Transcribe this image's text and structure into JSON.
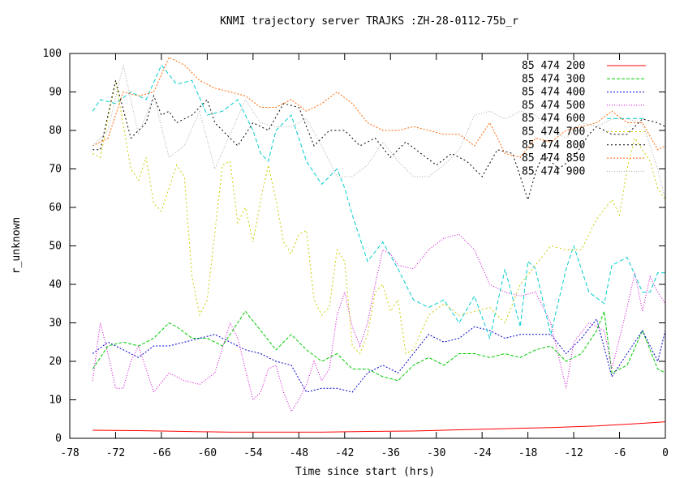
{
  "chart_data": {
    "type": "line",
    "title": "KNMI trajectory server TRAJKS :ZH-28-0112-75b_r",
    "xlabel": "Time since start (hrs)",
    "ylabel": "r_unknown",
    "xlim": [
      -78,
      0
    ],
    "ylim": [
      0,
      100
    ],
    "xticks": [
      "-78",
      "-72",
      "-66",
      "-60",
      "-54",
      "-48",
      "-42",
      "-36",
      "-30",
      "-24",
      "-18",
      "-12",
      "-6",
      "0"
    ],
    "yticks": [
      "0",
      "10",
      "20",
      "30",
      "40",
      "50",
      "60",
      "70",
      "80",
      "90",
      "100"
    ],
    "grid": false,
    "legend_position": "top-right",
    "series": [
      {
        "name": "85 474 200",
        "color": "#ff0000",
        "dash": "",
        "x": [
          -75,
          -69,
          -63,
          -57,
          -51,
          -45,
          -39,
          -33,
          -27,
          -21,
          -15,
          -9,
          -3,
          0
        ],
        "y": [
          2.1,
          2.0,
          1.8,
          1.6,
          1.6,
          1.6,
          1.8,
          1.9,
          2.2,
          2.5,
          2.8,
          3.2,
          3.9,
          4.3
        ]
      },
      {
        "name": "85 474 300",
        "color": "#00cc00",
        "dash": "4,2",
        "x": [
          -75,
          -73,
          -71,
          -69,
          -67,
          -65,
          -64,
          -62,
          -60,
          -58,
          -56,
          -55,
          -53,
          -51,
          -49,
          -47,
          -45,
          -43,
          -41,
          -39,
          -37,
          -35,
          -33,
          -31,
          -29,
          -27,
          -25,
          -23,
          -21,
          -19,
          -17,
          -15,
          -13,
          -11,
          -9,
          -8,
          -7,
          -5,
          -3,
          -1,
          0
        ],
        "y": [
          18,
          24,
          25,
          24,
          26,
          30,
          29,
          26,
          26,
          24,
          30,
          33,
          28,
          23,
          27,
          23,
          20,
          22,
          18,
          18,
          16,
          15,
          19,
          21,
          19,
          22,
          22,
          21,
          22,
          21,
          23,
          24,
          20,
          22,
          28,
          33,
          17,
          19,
          28,
          18,
          17
        ]
      },
      {
        "name": "85 474 400",
        "color": "#0000cc",
        "dash": "2,2",
        "x": [
          -75,
          -73,
          -71,
          -69,
          -67,
          -65,
          -63,
          -61,
          -59,
          -57,
          -55,
          -53,
          -51,
          -49,
          -47,
          -45,
          -43,
          -41,
          -39,
          -37,
          -35,
          -33,
          -31,
          -29,
          -27,
          -25,
          -23,
          -21,
          -19,
          -17,
          -15,
          -13,
          -11,
          -9,
          -7,
          -5,
          -3,
          -1,
          0
        ],
        "y": [
          22,
          25,
          23,
          21,
          24,
          24,
          25,
          26,
          27,
          25,
          23,
          22,
          20,
          19,
          12,
          13,
          13,
          12,
          17,
          19,
          17,
          22,
          27,
          25,
          26,
          29,
          28,
          26,
          27,
          27,
          27,
          22,
          26,
          31,
          16,
          22,
          28,
          20,
          28
        ]
      },
      {
        "name": "85 474 500",
        "color": "#cc00cc",
        "dash": "1,2",
        "x": [
          -75,
          -74,
          -73,
          -72,
          -71,
          -70,
          -69,
          -67,
          -65,
          -63,
          -61,
          -59,
          -57,
          -56,
          -55,
          -54,
          -53,
          -52,
          -51,
          -50,
          -49,
          -48,
          -47,
          -46,
          -45,
          -44,
          -43,
          -42,
          -41,
          -40,
          -39,
          -38,
          -37,
          -36,
          -35,
          -33,
          -31,
          -29,
          -27,
          -25,
          -23,
          -21,
          -19,
          -17,
          -15,
          -13,
          -12,
          -10,
          -8,
          -7,
          -5,
          -4,
          -3,
          -2,
          -1,
          0
        ],
        "y": [
          15,
          30,
          22,
          13,
          13,
          20,
          24,
          12,
          17,
          15,
          14,
          17,
          30,
          26,
          18,
          10,
          12,
          18,
          19,
          12,
          7,
          10,
          14,
          20,
          15,
          18,
          32,
          38,
          29,
          24,
          30,
          40,
          49,
          48,
          45,
          44,
          49,
          52,
          53,
          49,
          40,
          38,
          37,
          38,
          30,
          13,
          25,
          30,
          28,
          18,
          34,
          43,
          33,
          42,
          38,
          35
        ]
      },
      {
        "name": "85 474 600",
        "color": "#00cccc",
        "dash": "5,3",
        "x": [
          -75,
          -74,
          -72,
          -70,
          -68,
          -66,
          -64,
          -62,
          -60,
          -58,
          -56,
          -54,
          -53,
          -52,
          -51,
          -49,
          -47,
          -45,
          -43,
          -42,
          -41,
          -39,
          -37,
          -35,
          -33,
          -31,
          -29,
          -27,
          -25,
          -23,
          -21,
          -19,
          -18,
          -17,
          -15,
          -13,
          -12,
          -10,
          -8,
          -7,
          -5,
          -3,
          -2,
          -1,
          0
        ],
        "y": [
          85,
          88,
          87,
          90,
          88,
          97,
          92,
          93,
          84,
          85,
          88,
          80,
          74,
          72,
          80,
          84,
          72,
          66,
          70,
          65,
          58,
          46,
          51,
          44,
          36,
          34,
          36,
          30,
          37,
          26,
          44,
          29,
          46,
          44,
          27,
          44,
          50,
          38,
          35,
          45,
          47,
          38,
          38,
          43,
          43
        ]
      },
      {
        "name": "85 474 700",
        "color": "#cccc00",
        "dash": "2,3",
        "x": [
          -75,
          -74,
          -72,
          -70,
          -69,
          -68,
          -67,
          -66,
          -64,
          -63,
          -62,
          -61,
          -60,
          -58,
          -57,
          -56,
          -55,
          -54,
          -53,
          -52,
          -51,
          -50,
          -49,
          -48,
          -47,
          -46,
          -45,
          -44,
          -43,
          -42,
          -41,
          -40,
          -39,
          -38,
          -37,
          -36,
          -35,
          -34,
          -33,
          -31,
          -29,
          -27,
          -25,
          -23,
          -21,
          -19,
          -17,
          -15,
          -13,
          -11,
          -9,
          -7,
          -6,
          -5,
          -4,
          -3,
          -2,
          -1,
          0
        ],
        "y": [
          74,
          73,
          93,
          70,
          67,
          73,
          61,
          59,
          71,
          68,
          42,
          32,
          36,
          71,
          72,
          56,
          60,
          51,
          62,
          71,
          62,
          51,
          48,
          53,
          54,
          36,
          32,
          34,
          49,
          46,
          24,
          22,
          27,
          38,
          40,
          33,
          36,
          22,
          23,
          32,
          35,
          32,
          33,
          34,
          30,
          40,
          45,
          50,
          49,
          49,
          57,
          62,
          58,
          70,
          78,
          75,
          72,
          65,
          62
        ]
      },
      {
        "name": "85 474 800",
        "color": "#000000",
        "dash": "2,3",
        "x": [
          -75,
          -74,
          -72,
          -70,
          -68,
          -67,
          -66,
          -65,
          -64,
          -62,
          -60,
          -59,
          -57,
          -56,
          -54,
          -52,
          -50,
          -48,
          -46,
          -44,
          -42,
          -40,
          -38,
          -36,
          -34,
          -32,
          -30,
          -28,
          -26,
          -24,
          -22,
          -20,
          -18,
          -17,
          -16,
          -14,
          -12,
          -10,
          -9,
          -7,
          -5,
          -3,
          -1,
          0
        ],
        "y": [
          75,
          75,
          93,
          78,
          82,
          89,
          84,
          85,
          82,
          84,
          88,
          82,
          78,
          76,
          82,
          80,
          87,
          86,
          76,
          80,
          80,
          76,
          78,
          73,
          77,
          74,
          71,
          74,
          72,
          68,
          75,
          74,
          62,
          69,
          74,
          70,
          73,
          79,
          81,
          79,
          79,
          83,
          82,
          81
        ]
      },
      {
        "name": "85 474 850",
        "color": "#ff6600",
        "dash": "2,2",
        "x": [
          -75,
          -73,
          -71,
          -69,
          -67,
          -65,
          -63,
          -61,
          -59,
          -57,
          -55,
          -53,
          -51,
          -49,
          -47,
          -45,
          -43,
          -41,
          -39,
          -37,
          -35,
          -33,
          -31,
          -29,
          -27,
          -25,
          -23,
          -21,
          -19,
          -17,
          -15,
          -13,
          -11,
          -9,
          -7,
          -5,
          -3,
          -1,
          0
        ],
        "y": [
          76,
          78,
          90,
          89,
          90,
          99,
          97,
          93,
          91,
          90,
          89,
          86,
          86,
          88,
          85,
          87,
          90,
          87,
          82,
          80,
          80,
          81,
          80,
          79,
          79,
          76,
          82,
          74,
          73,
          78,
          77,
          80,
          81,
          82,
          85,
          82,
          82,
          75,
          76
        ]
      },
      {
        "name": "85 474 900",
        "color": "#aaaaaa",
        "dash": "1,2",
        "x": [
          -75,
          -73,
          -71,
          -69,
          -67,
          -65,
          -63,
          -61,
          -59,
          -57,
          -55,
          -53,
          -51,
          -49,
          -47,
          -45,
          -43,
          -41,
          -39,
          -37,
          -35,
          -33,
          -31,
          -29,
          -27,
          -25,
          -23,
          -21,
          -19,
          -17,
          -15,
          -13,
          -11,
          -9,
          -7,
          -5,
          -3,
          -1,
          0
        ],
        "y": [
          76,
          80,
          97,
          79,
          89,
          73,
          76,
          85,
          70,
          79,
          88,
          82,
          81,
          81,
          83,
          76,
          68,
          68,
          71,
          77,
          72,
          68,
          68,
          71,
          75,
          84,
          85,
          83,
          85,
          84,
          80,
          78,
          82,
          81,
          83,
          83,
          82,
          70,
          62
        ]
      }
    ]
  }
}
